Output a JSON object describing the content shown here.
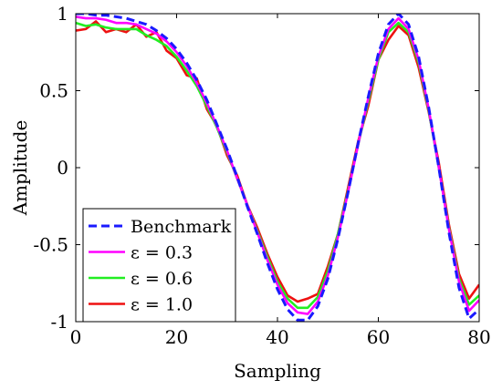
{
  "chart_data": {
    "type": "line",
    "xlabel": "Sampling",
    "ylabel": "Amplitude",
    "xlim": [
      0,
      80
    ],
    "ylim": [
      -1,
      1
    ],
    "x_ticks": [
      0,
      20,
      40,
      60,
      80
    ],
    "y_ticks": [
      -1,
      -0.5,
      0,
      0.5,
      1
    ],
    "x_tick_labels": [
      "0",
      "20",
      "40",
      "60",
      "80"
    ],
    "y_tick_labels": [
      "-1",
      "-0.5",
      "0",
      "0.5",
      "1"
    ],
    "grid": false,
    "legend_position": "bottom-left",
    "x": [
      0,
      2,
      4,
      6,
      8,
      10,
      12,
      14,
      16,
      18,
      20,
      22,
      24,
      26,
      28,
      30,
      32,
      34,
      36,
      38,
      40,
      42,
      44,
      46,
      48,
      50,
      52,
      54,
      56,
      58,
      60,
      62,
      64,
      66,
      68,
      70,
      72,
      74,
      76,
      78,
      80
    ],
    "series": [
      {
        "name": "Benchmark",
        "color": "#1a1aff",
        "dash": "dashed",
        "values": [
          1.0,
          1.0,
          0.99,
          0.99,
          0.98,
          0.97,
          0.95,
          0.93,
          0.89,
          0.84,
          0.77,
          0.68,
          0.57,
          0.44,
          0.28,
          0.12,
          -0.06,
          -0.25,
          -0.43,
          -0.62,
          -0.79,
          -0.92,
          -0.99,
          -0.99,
          -0.9,
          -0.72,
          -0.46,
          -0.16,
          0.16,
          0.46,
          0.74,
          0.93,
          1.0,
          0.93,
          0.72,
          0.39,
          -0.0,
          -0.42,
          -0.78,
          -0.98,
          -0.92
        ]
      },
      {
        "name": "ε = 0.3",
        "color": "#ff00ff",
        "values": [
          0.98,
          0.97,
          0.97,
          0.96,
          0.94,
          0.94,
          0.93,
          0.9,
          0.87,
          0.82,
          0.75,
          0.66,
          0.55,
          0.42,
          0.27,
          0.11,
          -0.07,
          -0.24,
          -0.42,
          -0.6,
          -0.76,
          -0.88,
          -0.94,
          -0.95,
          -0.87,
          -0.7,
          -0.45,
          -0.16,
          0.15,
          0.45,
          0.72,
          0.9,
          0.97,
          0.9,
          0.7,
          0.38,
          0.0,
          -0.4,
          -0.74,
          -0.93,
          -0.86
        ]
      },
      {
        "name": "ε = 0.6",
        "color": "#22ee22",
        "values": [
          0.94,
          0.92,
          0.93,
          0.91,
          0.9,
          0.9,
          0.9,
          0.86,
          0.83,
          0.79,
          0.72,
          0.63,
          0.53,
          0.4,
          0.26,
          0.1,
          -0.07,
          -0.24,
          -0.41,
          -0.58,
          -0.74,
          -0.85,
          -0.91,
          -0.91,
          -0.84,
          -0.67,
          -0.43,
          -0.15,
          0.15,
          0.43,
          0.7,
          0.88,
          0.94,
          0.88,
          0.68,
          0.37,
          0.0,
          -0.39,
          -0.72,
          -0.89,
          -0.83
        ]
      },
      {
        "name": "ε = 1.0",
        "color": "#ee1111",
        "values": [
          0.89,
          0.9,
          0.95,
          0.88,
          0.9,
          0.88,
          0.93,
          0.85,
          0.88,
          0.76,
          0.71,
          0.6,
          0.58,
          0.38,
          0.27,
          0.08,
          -0.05,
          -0.24,
          -0.39,
          -0.56,
          -0.71,
          -0.83,
          -0.87,
          -0.85,
          -0.82,
          -0.64,
          -0.43,
          -0.13,
          0.17,
          0.4,
          0.7,
          0.83,
          0.92,
          0.86,
          0.65,
          0.36,
          0.03,
          -0.37,
          -0.69,
          -0.85,
          -0.76
        ]
      }
    ]
  },
  "legend": {
    "items": [
      {
        "label": "Benchmark",
        "color": "#1a1aff",
        "dash": "dashed"
      },
      {
        "label": "ε = 0.3",
        "color": "#ff00ff",
        "dash": "solid"
      },
      {
        "label": "ε = 0.6",
        "color": "#22ee22",
        "dash": "solid"
      },
      {
        "label": "ε = 1.0",
        "color": "#ee1111",
        "dash": "solid"
      }
    ]
  }
}
